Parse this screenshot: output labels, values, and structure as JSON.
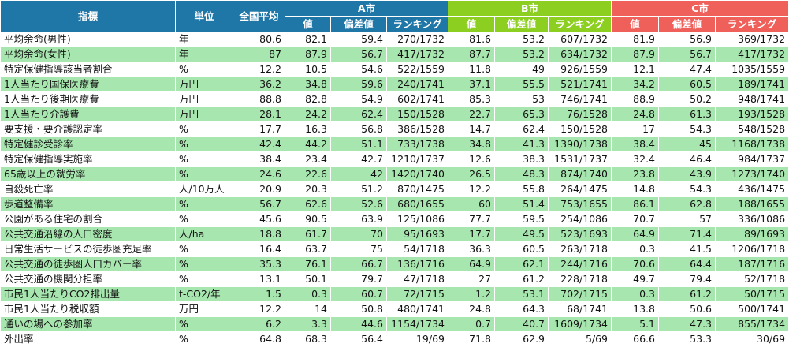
{
  "headers": {
    "indicator": "指標",
    "unit": "単位",
    "national_avg": "全国平均",
    "cities": [
      "A市",
      "B市",
      "C市"
    ],
    "sub": [
      "値",
      "偏差値",
      "ランキング"
    ]
  },
  "colors": {
    "header_blue": "#1f77a8",
    "header_green": "#8ccf20",
    "header_red": "#f0605b",
    "row_stripe": "#a8e6b0"
  },
  "rows": [
    [
      "平均余命(男性)",
      "年",
      "80.6",
      "82.1",
      "59.4",
      "270/1732",
      "81.6",
      "53.2",
      "607/1732",
      "81.9",
      "56.9",
      "369/1732"
    ],
    [
      "平均余命(女性)",
      "年",
      "87",
      "87.9",
      "56.7",
      "417/1732",
      "87.7",
      "53.2",
      "634/1732",
      "87.9",
      "56.7",
      "417/1732"
    ],
    [
      "特定保健指導該当者割合",
      "%",
      "12.2",
      "10.5",
      "54.6",
      "522/1559",
      "11.8",
      "49",
      "926/1559",
      "12.1",
      "47.4",
      "1035/1559"
    ],
    [
      "1人当たり国保医療費",
      "万円",
      "36.2",
      "34.8",
      "59.6",
      "240/1741",
      "37.1",
      "55.5",
      "521/1741",
      "34.2",
      "60.5",
      "189/1741"
    ],
    [
      "1人当たり後期医療費",
      "万円",
      "88.8",
      "82.8",
      "54.9",
      "602/1741",
      "85.3",
      "53",
      "746/1741",
      "88.9",
      "50.2",
      "948/1741"
    ],
    [
      "1人当たり介護費",
      "万円",
      "28.1",
      "24.2",
      "62.4",
      "150/1528",
      "22.7",
      "65.3",
      "76/1528",
      "24.8",
      "61.3",
      "193/1528"
    ],
    [
      "要支援・要介護認定率",
      "%",
      "17.7",
      "16.3",
      "56.8",
      "386/1528",
      "14.7",
      "62.4",
      "150/1528",
      "17",
      "54.3",
      "548/1528"
    ],
    [
      "特定健診受診率",
      "%",
      "42.4",
      "44.2",
      "51.1",
      "733/1738",
      "34.8",
      "41.3",
      "1390/1738",
      "38.4",
      "45",
      "1168/1738"
    ],
    [
      "特定保健指導実施率",
      "%",
      "38.4",
      "23.4",
      "42.7",
      "1210/1737",
      "12.6",
      "38.3",
      "1531/1737",
      "32.4",
      "46.4",
      "984/1737"
    ],
    [
      "65歳以上の就労率",
      "%",
      "24.6",
      "22.6",
      "42",
      "1420/1740",
      "26.5",
      "48.3",
      "874/1740",
      "23.8",
      "43.9",
      "1273/1740"
    ],
    [
      "自殺死亡率",
      "人/10万人",
      "20.9",
      "20.3",
      "51.2",
      "870/1475",
      "12.2",
      "55.8",
      "264/1475",
      "14.8",
      "54.3",
      "436/1475"
    ],
    [
      "歩道整備率",
      "%",
      "56.7",
      "62.6",
      "52.6",
      "680/1655",
      "60",
      "51.4",
      "753/1655",
      "86.1",
      "62.8",
      "188/1655"
    ],
    [
      "公園がある住宅の割合",
      "%",
      "45.6",
      "90.5",
      "63.9",
      "125/1086",
      "77.7",
      "59.5",
      "254/1086",
      "70.7",
      "57",
      "336/1086"
    ],
    [
      "公共交通沿線の人口密度",
      "人/ha",
      "18.8",
      "61.7",
      "70",
      "95/1693",
      "17.7",
      "49.5",
      "523/1693",
      "64.9",
      "71.4",
      "89/1693"
    ],
    [
      "日常生活サービスの徒歩圏充足率",
      "%",
      "16.4",
      "63.7",
      "75",
      "54/1718",
      "36.3",
      "60.5",
      "263/1718",
      "0.3",
      "41.5",
      "1206/1718"
    ],
    [
      "公共交通の徒歩圏人口カバー率",
      "%",
      "35.3",
      "76.1",
      "66.7",
      "136/1716",
      "64.9",
      "62.1",
      "244/1716",
      "70.6",
      "64.4",
      "187/1716"
    ],
    [
      "公共交通の機関分担率",
      "%",
      "13.1",
      "50.1",
      "79.7",
      "47/1718",
      "27",
      "61.2",
      "228/1718",
      "49.7",
      "79.4",
      "52/1718"
    ],
    [
      "市民1人当たりCO2排出量",
      "t-CO2/年",
      "1.5",
      "0.3",
      "60.7",
      "72/1715",
      "1.2",
      "53.1",
      "702/1715",
      "0.3",
      "61.2",
      "50/1715"
    ],
    [
      "市民1人当たり税収額",
      "万円",
      "12.2",
      "14",
      "50.8",
      "480/1741",
      "24.8",
      "64.3",
      "68/1741",
      "13.8",
      "50.6",
      "500/1741"
    ],
    [
      "通いの場への参加率",
      "%",
      "6.2",
      "3.3",
      "44.6",
      "1154/1734",
      "0.7",
      "40.7",
      "1609/1734",
      "5.1",
      "47.3",
      "855/1734"
    ],
    [
      "外出率",
      "%",
      "64.8",
      "68.3",
      "56.4",
      "19/69",
      "71.8",
      "62.9",
      "5/69",
      "66.6",
      "53.3",
      "30/69"
    ]
  ]
}
